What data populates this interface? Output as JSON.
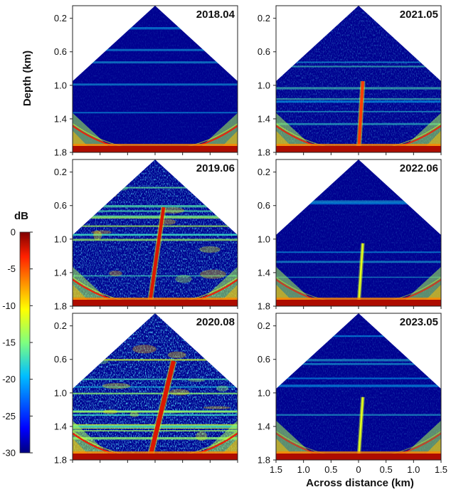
{
  "chart_data": {
    "type": "heatmap",
    "figure_note": "",
    "panels": [
      {
        "label": "2018.04",
        "plume": "none",
        "cloud": 0.1,
        "ring": 0.9
      },
      {
        "label": "2021.05",
        "plume": "partial",
        "cloud": 0.28,
        "ring": 0.85
      },
      {
        "label": "2019.06",
        "plume": "full",
        "cloud": 0.62,
        "ring": 0.95
      },
      {
        "label": "2022.06",
        "plume": "partial_weak",
        "cloud": 0.14,
        "ring": 0.7
      },
      {
        "label": "2020.08",
        "plume": "full_strong",
        "cloud": 0.78,
        "ring": 1.0
      },
      {
        "label": "2023.05",
        "plume": "partial_weak",
        "cloud": 0.16,
        "ring": 0.65
      }
    ],
    "y_axis": {
      "label": "Depth (km)",
      "ticks": [
        "0.2",
        "0.6",
        "1.0",
        "1.4",
        "1.8"
      ],
      "tick_values": [
        0.2,
        0.6,
        1.0,
        1.4,
        1.8
      ],
      "range": [
        0.05,
        1.8
      ]
    },
    "x_axis": {
      "label": "Across distance (km)",
      "ticks": [
        "1.5",
        "1.0",
        "0.5",
        "0",
        "0.5",
        "1.0",
        "1.5"
      ],
      "tick_values": [
        -1.5,
        -1.0,
        -0.5,
        0,
        0.5,
        1.0,
        1.5
      ],
      "range": [
        -1.5,
        1.5
      ]
    },
    "colorbar": {
      "title": "dB",
      "ticks": [
        "0",
        "-5",
        "-10",
        "-15",
        "-20",
        "-25",
        "-30"
      ],
      "tick_values": [
        0,
        -5,
        -10,
        -15,
        -20,
        -25,
        -30
      ],
      "range": [
        -30,
        0
      ],
      "colormap": "jet"
    },
    "colors": {
      "background_blue": "#0b1a8c",
      "deep_blue": "#00008f",
      "red": "#b40000",
      "orange": "#ff8c00",
      "yellow": "#ffee00",
      "cyan": "#23d5ff"
    }
  }
}
